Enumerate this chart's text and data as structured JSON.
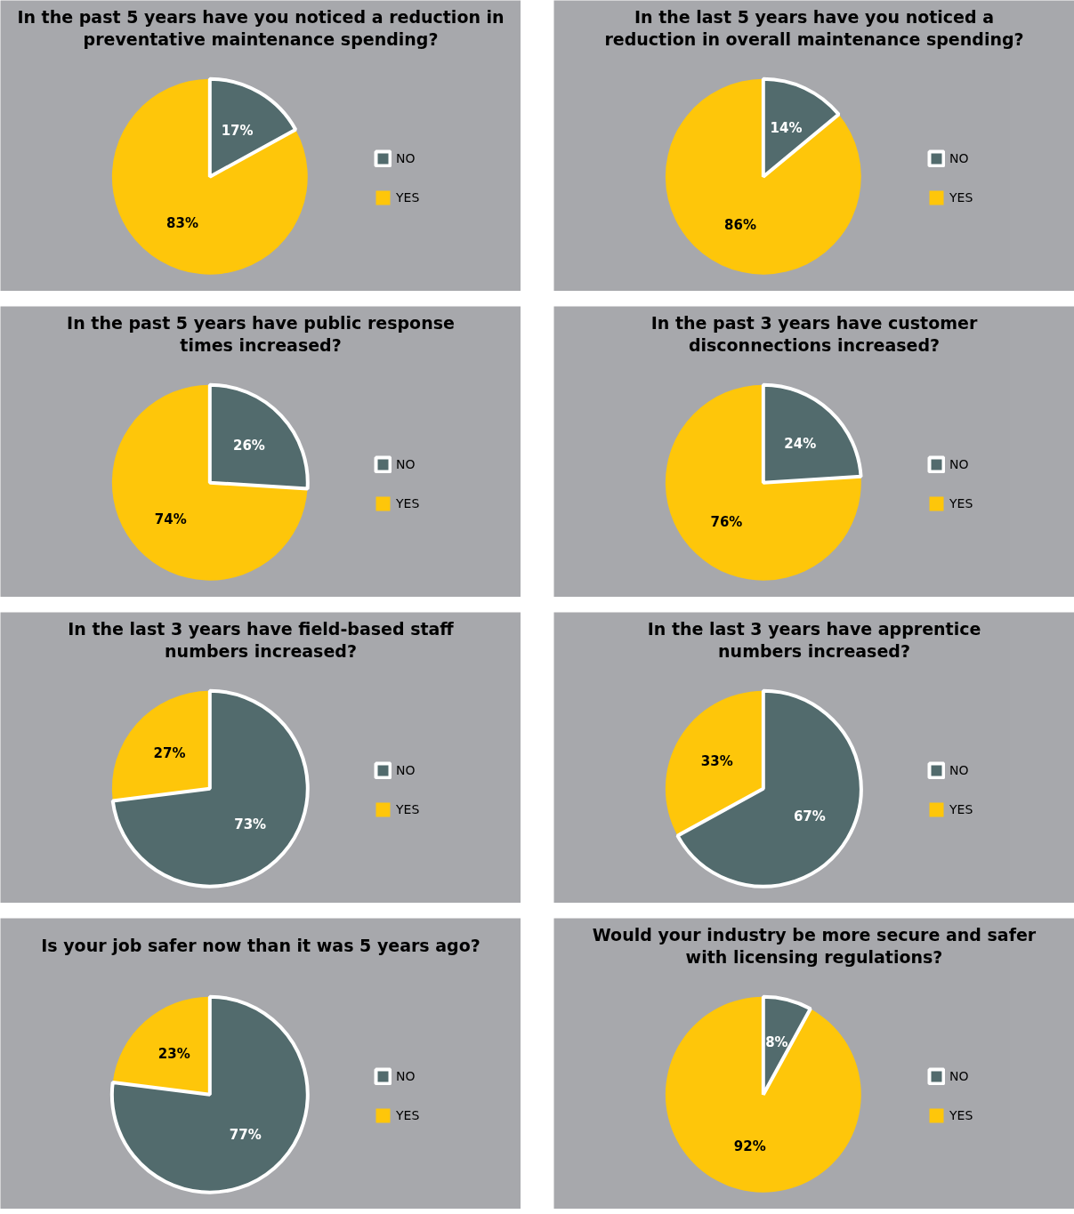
{
  "chart_data": [
    {
      "type": "pie",
      "title": "In the past 5 years have you noticed a reduction in\npreventative maintenance spending?",
      "categories": [
        "NO",
        "YES"
      ],
      "values": [
        17,
        83
      ],
      "value_labels": [
        "17%",
        "83%"
      ],
      "colors": [
        "#526b6d",
        "#fec60a"
      ],
      "legend": "right"
    },
    {
      "type": "pie",
      "title": "In the last 5 years have you noticed a\nreduction in overall maintenance spending?",
      "categories": [
        "NO",
        "YES"
      ],
      "values": [
        14,
        86
      ],
      "value_labels": [
        "14%",
        "86%"
      ],
      "colors": [
        "#526b6d",
        "#fec60a"
      ],
      "legend": "right"
    },
    {
      "type": "pie",
      "title": "In the past 5 years have public response\ntimes increased?",
      "categories": [
        "NO",
        "YES"
      ],
      "values": [
        26,
        74
      ],
      "value_labels": [
        "26%",
        "74%"
      ],
      "colors": [
        "#526b6d",
        "#fec60a"
      ],
      "legend": "right"
    },
    {
      "type": "pie",
      "title": "In the past 3 years have customer\ndisconnections increased?",
      "categories": [
        "NO",
        "YES"
      ],
      "values": [
        24,
        76
      ],
      "value_labels": [
        "24%",
        "76%"
      ],
      "colors": [
        "#526b6d",
        "#fec60a"
      ],
      "legend": "right"
    },
    {
      "type": "pie",
      "title": "In the last 3 years have field-based staff\nnumbers increased?",
      "categories": [
        "NO",
        "YES"
      ],
      "values": [
        73,
        27
      ],
      "value_labels": [
        "73%",
        "27%"
      ],
      "colors": [
        "#526b6d",
        "#fec60a"
      ],
      "legend": "right"
    },
    {
      "type": "pie",
      "title": "In the last 3 years have apprentice\nnumbers increased?",
      "categories": [
        "NO",
        "YES"
      ],
      "values": [
        67,
        33
      ],
      "value_labels": [
        "67%",
        "33%"
      ],
      "colors": [
        "#526b6d",
        "#fec60a"
      ],
      "legend": "right"
    },
    {
      "type": "pie",
      "title": "Is your job safer now than it was 5 years ago?",
      "categories": [
        "NO",
        "YES"
      ],
      "values": [
        77,
        23
      ],
      "value_labels": [
        "77%",
        "23%"
      ],
      "colors": [
        "#526b6d",
        "#fec60a"
      ],
      "legend": "right"
    },
    {
      "type": "pie",
      "title": "Would your industry be more secure and safer\nwith licensing regulations?",
      "categories": [
        "NO",
        "YES"
      ],
      "values": [
        8,
        92
      ],
      "value_labels": [
        "8%",
        "92%"
      ],
      "colors": [
        "#526b6d",
        "#fec60a"
      ],
      "legend": "right"
    }
  ]
}
